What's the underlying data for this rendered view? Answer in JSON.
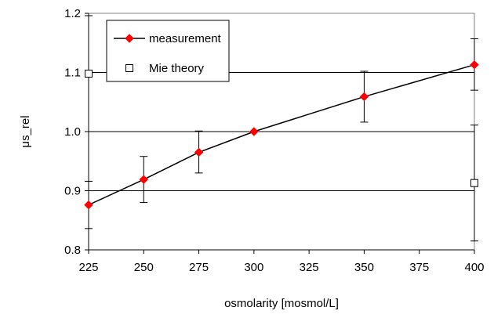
{
  "chart_data": {
    "type": "line",
    "xlabel": "osmolarity [mosmol/L]",
    "ylabel": "μs_rel",
    "xlim": [
      225,
      400
    ],
    "ylim": [
      0.8,
      1.2
    ],
    "xticks": [
      225,
      250,
      275,
      300,
      325,
      350,
      375,
      400
    ],
    "xtick_labels": [
      "225",
      "250",
      "275",
      "300",
      "325",
      "350",
      "375",
      "400"
    ],
    "yticks": [
      0.8,
      0.9,
      1.0,
      1.1,
      1.2
    ],
    "ytick_labels": [
      "0.8",
      "0.9",
      "1.0",
      "1.1",
      "1.2"
    ],
    "grid": "horizontal",
    "legend_position": "top-left",
    "series": [
      {
        "name": "measurement",
        "marker": "diamond",
        "color": "#ff0000",
        "line": true,
        "points": [
          {
            "x": 225,
            "y": 0.876,
            "err_low": 0.836,
            "err_high": 0.916
          },
          {
            "x": 250,
            "y": 0.919,
            "err_low": 0.88,
            "err_high": 0.958
          },
          {
            "x": 275,
            "y": 0.965,
            "err_low": 0.93,
            "err_high": 1.001
          },
          {
            "x": 300,
            "y": 1.0
          },
          {
            "x": 350,
            "y": 1.059,
            "err_low": 1.016,
            "err_high": 1.102
          },
          {
            "x": 400,
            "y": 1.113,
            "err_low": 1.07,
            "err_high": 1.157
          }
        ]
      },
      {
        "name": "Mie theory",
        "marker": "square",
        "color": "#ffffff",
        "line": false,
        "points": [
          {
            "x": 225,
            "y": 1.098,
            "err_low": 1.0,
            "err_high": 1.196
          },
          {
            "x": 400,
            "y": 0.913,
            "err_low": 0.815,
            "err_high": 1.011
          }
        ]
      }
    ]
  }
}
